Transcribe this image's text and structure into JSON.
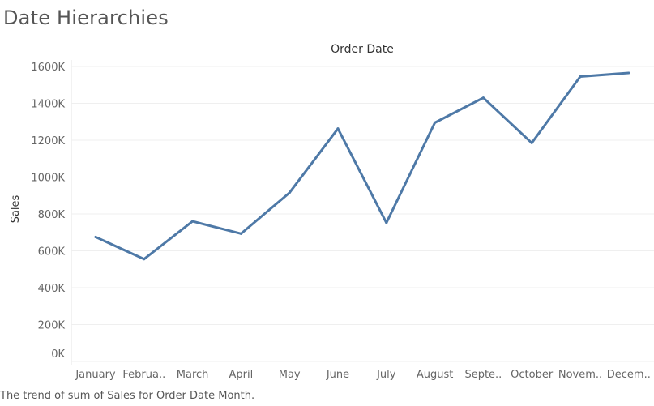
{
  "page": {
    "title": "Date Hierarchies",
    "caption": "The trend of sum of Sales for Order Date Month."
  },
  "chart_data": {
    "type": "line",
    "title": "Order Date",
    "xlabel": "",
    "ylabel": "Sales",
    "categories": [
      "January",
      "Februa..",
      "March",
      "April",
      "May",
      "June",
      "July",
      "August",
      "Septe..",
      "October",
      "Novem..",
      "Decem.."
    ],
    "series": [
      {
        "values": [
          675000,
          555000,
          760000,
          693000,
          915000,
          1263000,
          752000,
          1295000,
          1430000,
          1185000,
          1545000,
          1565000
        ]
      }
    ],
    "ylim": [
      0,
      1650000
    ],
    "yticks": [
      {
        "value": 0,
        "label": "0K"
      },
      {
        "value": 200000,
        "label": "200K"
      },
      {
        "value": 400000,
        "label": "400K"
      },
      {
        "value": 600000,
        "label": "600K"
      },
      {
        "value": 800000,
        "label": "800K"
      },
      {
        "value": 1000000,
        "label": "1000K"
      },
      {
        "value": 1200000,
        "label": "1200K"
      },
      {
        "value": 1400000,
        "label": "1400K"
      },
      {
        "value": 1600000,
        "label": "1600K"
      }
    ],
    "grid": true,
    "line_color": "#4e79a7"
  }
}
